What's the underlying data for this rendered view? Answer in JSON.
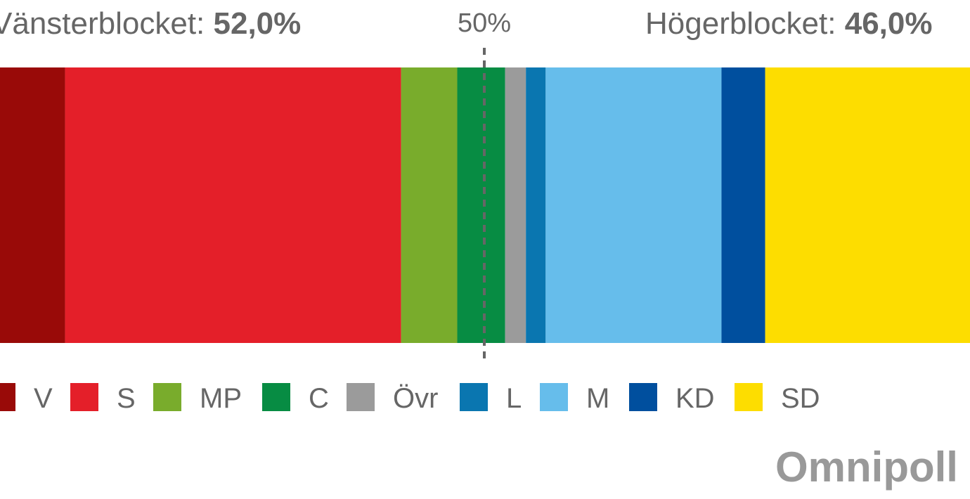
{
  "chart_data": {
    "type": "stacked-bar",
    "annotations": [
      {
        "text": "Vänsterblocket:",
        "value_label": "52,0%"
      },
      {
        "text": "Högerblocket:",
        "value_label": "46,0%"
      }
    ],
    "reference_line": {
      "value": 50,
      "label": "50%"
    },
    "xlim": [
      0,
      100
    ],
    "series": [
      {
        "name": "V",
        "color": "#990a08",
        "values": [
          9.7
        ]
      },
      {
        "name": "S",
        "color": "#e41f29",
        "values": [
          32.3
        ]
      },
      {
        "name": "MP",
        "color": "#79ac2c",
        "values": [
          5.4
        ]
      },
      {
        "name": "C",
        "color": "#078c43",
        "values": [
          4.6
        ]
      },
      {
        "name": "Övr",
        "color": "#9b9b9b",
        "values": [
          2.0
        ]
      },
      {
        "name": "L",
        "color": "#0a76b0",
        "values": [
          1.9
        ]
      },
      {
        "name": "M",
        "color": "#66bdeb",
        "values": [
          16.9
        ]
      },
      {
        "name": "KD",
        "color": "#004f9e",
        "values": [
          4.2
        ]
      },
      {
        "name": "SD",
        "color": "#fddd00",
        "values": [
          23.0
        ]
      }
    ],
    "source": "Omnipoll"
  }
}
